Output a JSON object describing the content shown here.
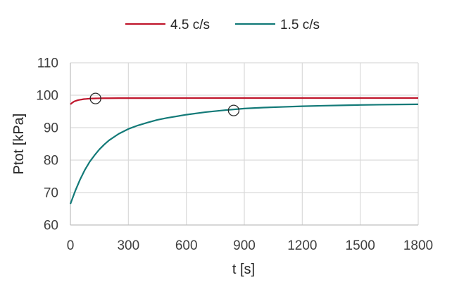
{
  "chart_data": {
    "type": "line",
    "xlabel": "t [s]",
    "ylabel": "Ptot [kPa]",
    "xlim": [
      0,
      1800
    ],
    "ylim": [
      60,
      110
    ],
    "x_ticks": [
      0,
      300,
      600,
      900,
      1200,
      1500,
      1800
    ],
    "x_tick_labels": [
      "0",
      "300",
      "600",
      "900",
      "1200",
      "1500",
      "1800"
    ],
    "y_ticks": [
      60,
      70,
      80,
      90,
      100,
      110
    ],
    "y_tick_labels": [
      "60",
      "70",
      "80",
      "90",
      "100",
      "110"
    ],
    "grid": true,
    "legend_position": "top",
    "series": [
      {
        "name": "4.5 c/s",
        "color": "#c0162c",
        "x": [
          0,
          10,
          20,
          30,
          40,
          50,
          60,
          70,
          80,
          90,
          100,
          110,
          120,
          130,
          140,
          150,
          175,
          200,
          250,
          300,
          400,
          500,
          600,
          800,
          1000,
          1200,
          1400,
          1600,
          1800
        ],
        "y": [
          97.2,
          97.7,
          98.1,
          98.3,
          98.5,
          98.6,
          98.7,
          98.8,
          98.85,
          98.9,
          98.95,
          99.0,
          99.0,
          99.02,
          99.04,
          99.05,
          99.07,
          99.08,
          99.1,
          99.1,
          99.1,
          99.12,
          99.12,
          99.13,
          99.13,
          99.13,
          99.13,
          99.13,
          99.13
        ]
      },
      {
        "name": "1.5 c/s",
        "color": "#137a78",
        "x": [
          0,
          25,
          50,
          75,
          100,
          125,
          150,
          175,
          200,
          250,
          300,
          350,
          400,
          450,
          500,
          600,
          700,
          800,
          900,
          1000,
          1100,
          1200,
          1300,
          1400,
          1500,
          1600,
          1700,
          1800
        ],
        "y": [
          66.5,
          70.5,
          74.0,
          77.0,
          79.5,
          81.5,
          83.3,
          84.8,
          86.1,
          88.1,
          89.6,
          90.7,
          91.6,
          92.4,
          93.0,
          94.0,
          94.8,
          95.4,
          95.9,
          96.2,
          96.4,
          96.6,
          96.75,
          96.88,
          97.0,
          97.08,
          97.15,
          97.2
        ]
      }
    ],
    "markers": [
      {
        "shape": "circle",
        "x": 130,
        "y": 99.0
      },
      {
        "shape": "circle",
        "x": 845,
        "y": 95.3
      }
    ]
  }
}
